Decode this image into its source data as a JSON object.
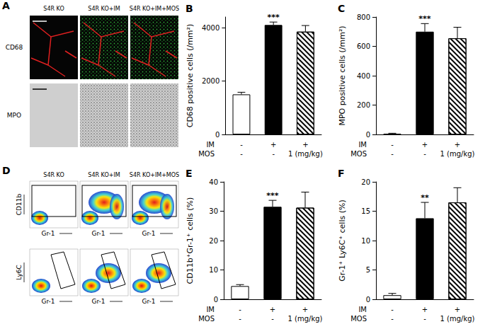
{
  "image_panels": [
    {
      "title": "A",
      "columns": [
        "S4R KO",
        "S4R KO+IM",
        "S4R KO+IM+MOS"
      ],
      "rows": [
        "CD68",
        "MPO"
      ]
    },
    {
      "title": "D",
      "columns": [
        "S4R KO",
        "S4R KO+IM",
        "S4R KO+IM+MOS"
      ],
      "rows": [
        {
          "y_label": "CD11b",
          "x_label": "Gr-1"
        },
        {
          "y_label": "Ly6C",
          "x_label": "Gr-1"
        }
      ]
    }
  ],
  "chart_data": [
    {
      "type": "bar",
      "title": "B",
      "ylabel": "CD68 positive cells (/mm²)",
      "condition_rows": [
        {
          "name": "IM",
          "values": [
            "-",
            "+",
            "+"
          ]
        },
        {
          "name": "MOS",
          "values": [
            "-",
            "-",
            "1 (mg/kg)"
          ]
        }
      ],
      "values": [
        1500,
        4100,
        3850
      ],
      "errors": [
        80,
        110,
        230
      ],
      "colors": [
        "#ffffff",
        "#000000",
        "#ffffff"
      ],
      "ylim": [
        0,
        4400
      ],
      "yticks": [
        0,
        2000,
        4000
      ],
      "grid": false,
      "annotations": [
        {
          "text": "***",
          "index": 1
        }
      ]
    },
    {
      "type": "bar",
      "title": "C",
      "ylabel": "MPO positive cells (/mm²)",
      "condition_rows": [
        {
          "name": "IM",
          "values": [
            "-",
            "+",
            "+"
          ]
        },
        {
          "name": "MOS",
          "values": [
            "-",
            "-",
            "1 (mg/kg)"
          ]
        }
      ],
      "values": [
        5,
        700,
        655
      ],
      "errors": [
        3,
        55,
        75
      ],
      "colors": [
        "#ffffff",
        "#000000",
        "#ffffff"
      ],
      "ylim": [
        0,
        800
      ],
      "yticks": [
        0,
        200,
        400,
        600,
        800
      ],
      "grid": false,
      "annotations": [
        {
          "text": "***",
          "index": 1
        }
      ]
    },
    {
      "type": "bar",
      "title": "E",
      "ylabel": "CD11b⁺Gr-1⁺ cells (%)",
      "condition_rows": [
        {
          "name": "IM",
          "values": [
            "-",
            "+",
            "+"
          ]
        },
        {
          "name": "MOS",
          "values": [
            "-",
            "-",
            "1 (mg/kg)"
          ]
        }
      ],
      "values": [
        4.5,
        31.5,
        31.2
      ],
      "errors": [
        0.5,
        2.2,
        5.3
      ],
      "colors": [
        "#ffffff",
        "#000000",
        "#ffffff"
      ],
      "ylim": [
        0,
        40
      ],
      "yticks": [
        0,
        10,
        20,
        30,
        40
      ],
      "grid": false,
      "annotations": [
        {
          "text": "***",
          "index": 1
        }
      ]
    },
    {
      "type": "bar",
      "title": "F",
      "ylabel": "Gr-1⁺ Ly6C⁺ cells (%)",
      "condition_rows": [
        {
          "name": "IM",
          "values": [
            "-",
            "+",
            "+"
          ]
        },
        {
          "name": "MOS",
          "values": [
            "-",
            "-",
            "1 (mg/kg)"
          ]
        }
      ],
      "values": [
        0.7,
        13.8,
        16.5
      ],
      "errors": [
        0.3,
        2.7,
        2.5
      ],
      "colors": [
        "#ffffff",
        "#000000",
        "#ffffff"
      ],
      "ylim": [
        0,
        20
      ],
      "yticks": [
        0,
        5,
        10,
        15,
        20
      ],
      "grid": false,
      "annotations": [
        {
          "text": "**",
          "index": 1
        }
      ]
    }
  ]
}
